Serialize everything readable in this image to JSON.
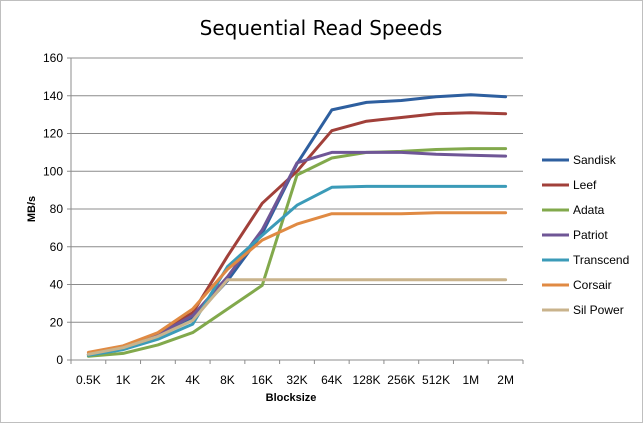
{
  "chart_data": {
    "type": "line",
    "title": "Sequential Read Speeds",
    "xlabel": "Blocksize",
    "ylabel": "MB/s",
    "ylim": [
      0,
      160
    ],
    "yticks": [
      0,
      20,
      40,
      60,
      80,
      100,
      120,
      140,
      160
    ],
    "categories": [
      "0.5K",
      "1K",
      "2K",
      "4K",
      "8K",
      "16K",
      "32K",
      "64K",
      "128K",
      "256K",
      "512K",
      "1M",
      "2M"
    ],
    "grid": "horizontal",
    "legend_position": "right",
    "series": [
      {
        "name": "Sandisk",
        "color": "#2e5f9f",
        "values": [
          3,
          6,
          13,
          22,
          42,
          67,
          104,
          132.5,
          136.5,
          137.5,
          139.5,
          140.5,
          139.5
        ]
      },
      {
        "name": "Leef",
        "color": "#a1403a",
        "values": [
          3,
          6.5,
          14,
          25,
          55,
          83,
          100,
          121.5,
          126.5,
          128.5,
          130.5,
          131,
          130.5
        ]
      },
      {
        "name": "Adata",
        "color": "#82a94c",
        "values": [
          2,
          3.5,
          8,
          14.5,
          27,
          39.5,
          98,
          107,
          110,
          110.5,
          111.5,
          112,
          112
        ]
      },
      {
        "name": "Patriot",
        "color": "#6f5696",
        "values": [
          3,
          7,
          13.5,
          23.5,
          44,
          69,
          104.5,
          110,
          110,
          110,
          109,
          108.5,
          108
        ]
      },
      {
        "name": "Transcend",
        "color": "#3b9bb8",
        "values": [
          2.5,
          5.5,
          11,
          19,
          49.5,
          66,
          82,
          91.5,
          92,
          92,
          92,
          92,
          92
        ]
      },
      {
        "name": "Corsair",
        "color": "#e08a43",
        "values": [
          4,
          7.5,
          14.5,
          27,
          48,
          63.5,
          72,
          77.5,
          77.5,
          77.5,
          78,
          78,
          78
        ]
      },
      {
        "name": "Sil Power",
        "color": "#c9b38c",
        "values": [
          3,
          6.5,
          12.5,
          21,
          42.5,
          42.5,
          42.5,
          42.5,
          42.5,
          42.5,
          42.5,
          42.5,
          42.5
        ]
      }
    ]
  }
}
